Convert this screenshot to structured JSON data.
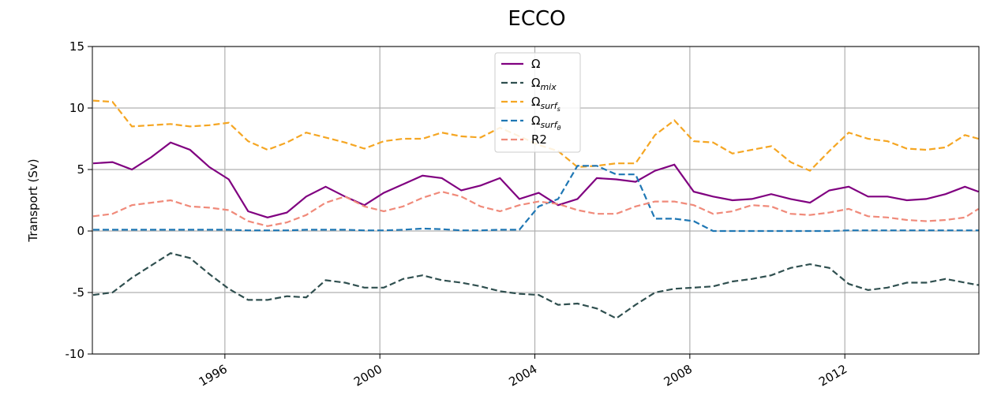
{
  "chart_data": {
    "type": "line",
    "title": "ECCO",
    "ylabel": "Transport (Sv)",
    "x": [
      1992.6,
      1993.1,
      1993.6,
      1994.1,
      1994.6,
      1995.1,
      1995.6,
      1996.1,
      1996.6,
      1997.1,
      1997.6,
      1998.1,
      1998.6,
      1999.1,
      1999.6,
      2000.1,
      2000.6,
      2001.1,
      2001.6,
      2002.1,
      2002.6,
      2003.1,
      2003.6,
      2004.1,
      2004.6,
      2005.1,
      2005.6,
      2006.1,
      2006.6,
      2007.1,
      2007.6,
      2008.1,
      2008.6,
      2009.1,
      2009.6,
      2010.1,
      2010.6,
      2011.1,
      2011.6,
      2012.1,
      2012.6,
      2013.1,
      2013.6,
      2014.1,
      2014.6,
      2015.1,
      2015.45
    ],
    "xlim": [
      1992.58,
      2015.46
    ],
    "xticks": [
      1996,
      2000,
      2004,
      2008,
      2012
    ],
    "ylim": [
      -10,
      15
    ],
    "yticks": [
      -10,
      -5,
      0,
      5,
      10,
      15
    ],
    "grid": true,
    "legend": "upper center",
    "series": [
      {
        "name": "Ω",
        "color": "#800080",
        "dashed": false,
        "values": [
          5.5,
          5.6,
          5.0,
          6.0,
          7.2,
          6.6,
          5.2,
          4.2,
          1.6,
          1.1,
          1.5,
          2.8,
          3.6,
          2.8,
          2.1,
          3.1,
          3.8,
          4.5,
          4.3,
          3.3,
          3.7,
          4.3,
          2.6,
          3.1,
          2.1,
          2.6,
          4.3,
          4.2,
          4.0,
          4.9,
          5.4,
          3.2,
          2.8,
          2.5,
          2.6,
          3.0,
          2.6,
          2.3,
          3.3,
          3.6,
          2.8,
          2.8,
          2.5,
          2.6,
          3.0,
          3.6,
          3.2
        ]
      },
      {
        "name": "Ω",
        "subscript": "mix",
        "color": "#2f4f4f",
        "dashed": true,
        "values": [
          -5.2,
          -5.0,
          -3.8,
          -2.8,
          -1.8,
          -2.2,
          -3.5,
          -4.7,
          -5.6,
          -5.6,
          -5.3,
          -5.4,
          -4.0,
          -4.2,
          -4.6,
          -4.6,
          -3.9,
          -3.6,
          -4.0,
          -4.2,
          -4.5,
          -4.9,
          -5.1,
          -5.2,
          -6.0,
          -5.9,
          -6.3,
          -7.1,
          -6.0,
          -5.0,
          -4.7,
          -4.6,
          -4.5,
          -4.1,
          -3.9,
          -3.6,
          -3.0,
          -2.7,
          -3.0,
          -4.3,
          -4.8,
          -4.6,
          -4.2,
          -4.2,
          -3.9,
          -4.2,
          -4.4
        ]
      },
      {
        "name": "Ω",
        "subscript": "surf",
        "subsubscript": "s",
        "color": "#f5a623",
        "dashed": true,
        "values": [
          10.6,
          10.5,
          8.5,
          8.6,
          8.7,
          8.5,
          8.6,
          8.8,
          7.3,
          6.6,
          7.2,
          8.0,
          7.6,
          7.2,
          6.7,
          7.3,
          7.5,
          7.5,
          8.0,
          7.7,
          7.6,
          8.4,
          7.7,
          7.0,
          6.5,
          5.2,
          5.3,
          5.5,
          5.5,
          7.8,
          9.0,
          7.3,
          7.2,
          6.3,
          6.6,
          6.9,
          5.6,
          4.9,
          6.5,
          8.0,
          7.5,
          7.3,
          6.7,
          6.6,
          6.8,
          7.8,
          7.5
        ]
      },
      {
        "name": "Ω",
        "subscript": "surf",
        "subsubscript": "θ",
        "color": "#1f77b4",
        "dashed": true,
        "values": [
          0.1,
          0.1,
          0.1,
          0.1,
          0.1,
          0.1,
          0.1,
          0.1,
          0.05,
          0.05,
          0.05,
          0.1,
          0.1,
          0.1,
          0.05,
          0.05,
          0.1,
          0.2,
          0.15,
          0.05,
          0.05,
          0.1,
          0.1,
          2.0,
          2.6,
          5.3,
          5.3,
          4.6,
          4.6,
          1.0,
          1.0,
          0.8,
          0.0,
          0.0,
          0.0,
          0.0,
          0.0,
          0.0,
          0.0,
          0.05,
          0.05,
          0.05,
          0.05,
          0.05,
          0.05,
          0.05,
          0.05
        ]
      },
      {
        "name": "R2",
        "color": "#f08a7a",
        "dashed": true,
        "values": [
          1.2,
          1.4,
          2.1,
          2.3,
          2.5,
          2.0,
          1.9,
          1.7,
          0.8,
          0.4,
          0.7,
          1.3,
          2.3,
          2.8,
          2.0,
          1.6,
          2.0,
          2.7,
          3.2,
          2.8,
          2.0,
          1.6,
          2.1,
          2.4,
          2.2,
          1.7,
          1.4,
          1.4,
          2.0,
          2.4,
          2.4,
          2.1,
          1.4,
          1.6,
          2.1,
          2.0,
          1.4,
          1.3,
          1.5,
          1.8,
          1.2,
          1.1,
          0.9,
          0.8,
          0.9,
          1.1,
          1.8
        ]
      }
    ]
  }
}
